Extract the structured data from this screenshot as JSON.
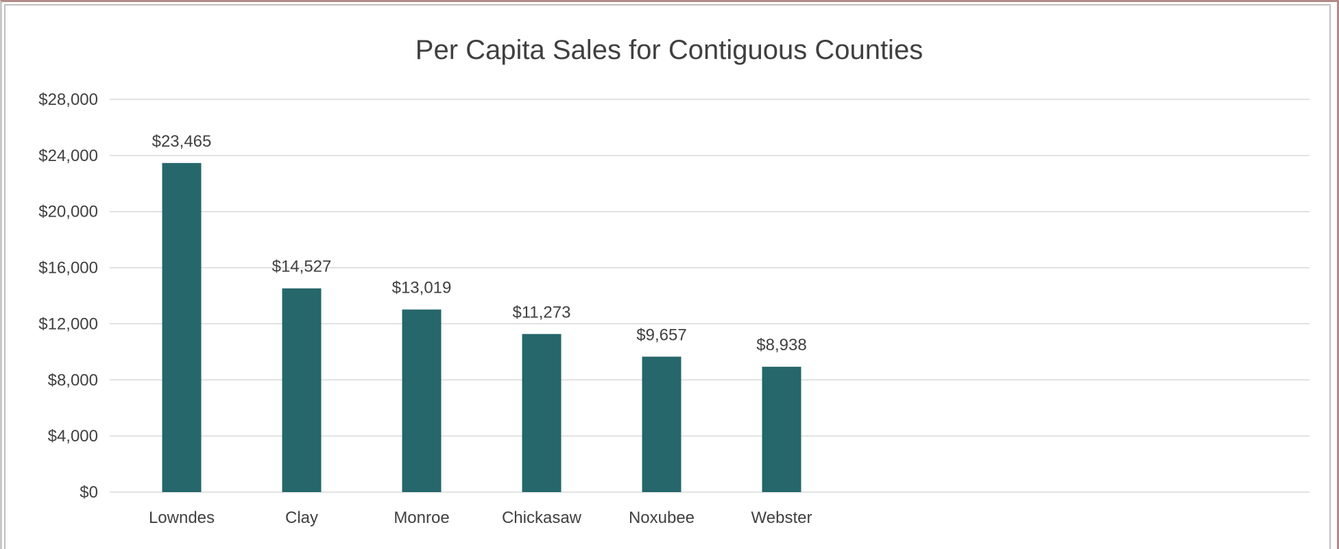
{
  "chart_data": {
    "type": "bar",
    "title": "Per Capita Sales for Contiguous Counties",
    "xlabel": "",
    "ylabel": "",
    "categories": [
      "Lowndes",
      "Clay",
      "Monroe",
      "Chickasaw",
      "Noxubee",
      "Webster"
    ],
    "values": [
      23465,
      14527,
      13019,
      11273,
      9657,
      8938
    ],
    "data_labels": [
      "$23,465",
      "$14,527",
      "$13,019",
      "$11,273",
      "$9,657",
      "$8,938"
    ],
    "ylim": [
      0,
      28000
    ],
    "yticks": [
      0,
      4000,
      8000,
      12000,
      16000,
      20000,
      24000,
      28000
    ],
    "ytick_labels": [
      "$0",
      "$4,000",
      "$8,000",
      "$12,000",
      "$16,000",
      "$20,000",
      "$24,000",
      "$28,000"
    ],
    "grid": true,
    "legend": "none",
    "bar_color": "#25676a",
    "grid_color": "#d9d9d9"
  }
}
